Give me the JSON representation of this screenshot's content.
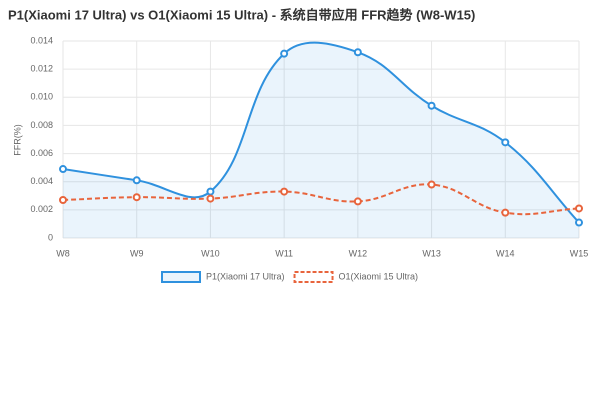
{
  "chart_data": {
    "type": "line",
    "title": "P1(Xiaomi 17 Ultra) vs O1(Xiaomi 15 Ultra) - 系统自带应用 FFR趋势 (W8-W15)",
    "y_label": "FFR(%)",
    "categories": [
      "W8",
      "W9",
      "W10",
      "W11",
      "W12",
      "W13",
      "W14",
      "W15"
    ],
    "series": [
      {
        "name": "P1(Xiaomi 17 Ultra)",
        "color": "#2f91de",
        "fill": "rgba(47,145,222,0.1)",
        "dashed": false,
        "values": [
          0.0049,
          0.0041,
          0.0033,
          0.0131,
          0.0132,
          0.0094,
          0.0068,
          0.0011
        ]
      },
      {
        "name": "O1(Xiaomi 15 Ultra)",
        "color": "#e8643c",
        "dashed": true,
        "values": [
          0.0027,
          0.0029,
          0.0028,
          0.0033,
          0.0026,
          0.0038,
          0.0018,
          0.0021
        ]
      }
    ],
    "ylim": [
      0,
      0.014
    ],
    "yticks": [
      0,
      0.002,
      {
        "value": 0.004,
        "label": "0.004"
      },
      0.006,
      0.008,
      {
        "value": 0.01,
        "label": "0.010"
      },
      0.012,
      0.014
    ],
    "grid": true,
    "legend": "bottom"
  }
}
